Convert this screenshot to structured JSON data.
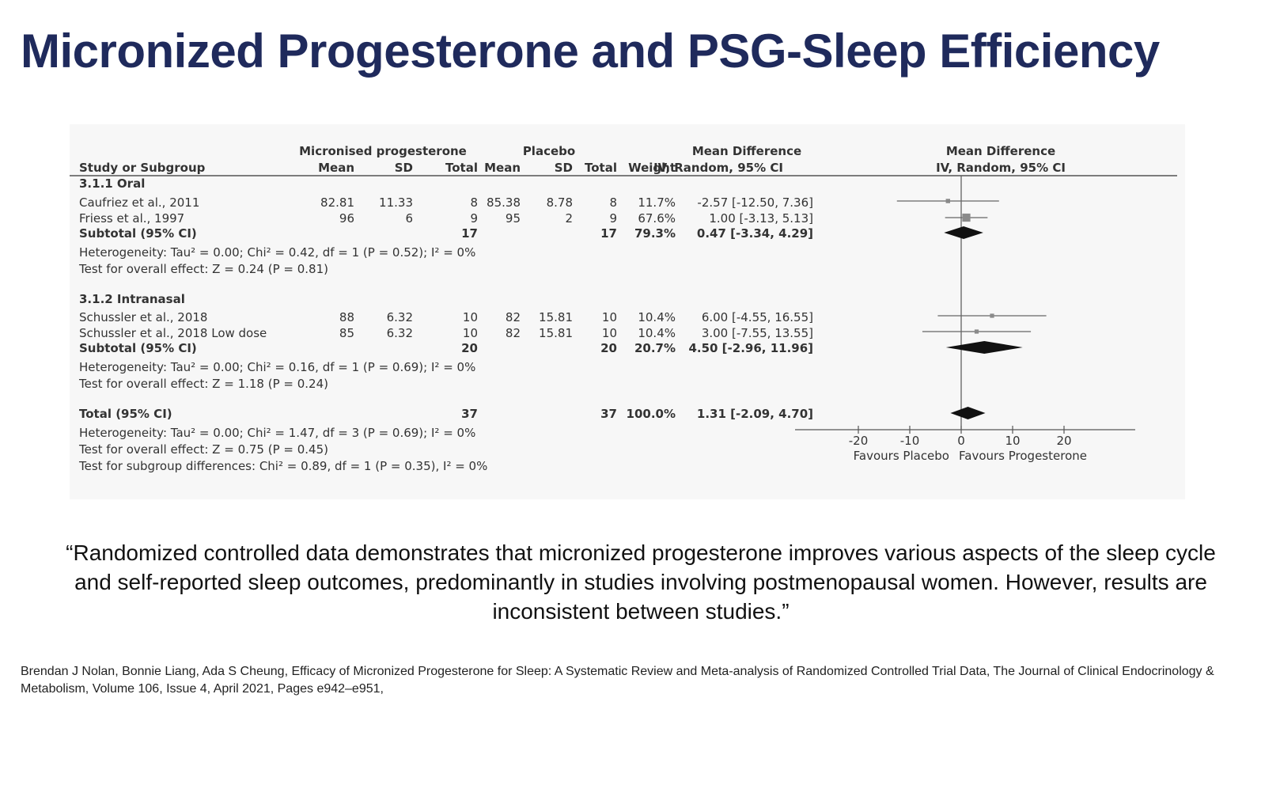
{
  "title": "Micronized Progesterone and PSG-Sleep Efficiency",
  "headers": {
    "group_treatment": "Micronised progesterone",
    "group_placebo": "Placebo",
    "group_md": "Mean Difference",
    "study": "Study or Subgroup",
    "mean": "Mean",
    "sd": "SD",
    "total": "Total",
    "weight": "Weight",
    "ci_method": "IV, Random, 95% CI",
    "plot_title": "Mean Difference",
    "plot_method": "IV, Random, 95% CI"
  },
  "subgroups": [
    {
      "name": "3.1.1 Oral",
      "studies": [
        {
          "study": "Caufriez et al., 2011",
          "t_mean": "82.81",
          "t_sd": "11.33",
          "t_total": "8",
          "p_mean": "85.38",
          "p_sd": "8.78",
          "p_total": "8",
          "weight": "11.7%",
          "ci_text": "-2.57 [-12.50, 7.36]"
        },
        {
          "study": "Friess et al., 1997",
          "t_mean": "96",
          "t_sd": "6",
          "t_total": "9",
          "p_mean": "95",
          "p_sd": "2",
          "p_total": "9",
          "weight": "67.6%",
          "ci_text": "1.00 [-3.13, 5.13]"
        }
      ],
      "subtotal": {
        "label": "Subtotal (95% CI)",
        "t_total": "17",
        "p_total": "17",
        "weight": "79.3%",
        "ci_text": "0.47 [-3.34, 4.29]"
      },
      "heterogeneity": "Heterogeneity: Tau² = 0.00; Chi² = 0.42, df = 1 (P = 0.52); I² = 0%",
      "overall": "Test for overall effect: Z = 0.24 (P = 0.81)"
    },
    {
      "name": "3.1.2 Intranasal",
      "studies": [
        {
          "study": "Schussler et al., 2018",
          "t_mean": "88",
          "t_sd": "6.32",
          "t_total": "10",
          "p_mean": "82",
          "p_sd": "15.81",
          "p_total": "10",
          "weight": "10.4%",
          "ci_text": "6.00 [-4.55, 16.55]"
        },
        {
          "study": "Schussler et al., 2018 Low dose",
          "t_mean": "85",
          "t_sd": "6.32",
          "t_total": "10",
          "p_mean": "82",
          "p_sd": "15.81",
          "p_total": "10",
          "weight": "10.4%",
          "ci_text": "3.00 [-7.55, 13.55]"
        }
      ],
      "subtotal": {
        "label": "Subtotal (95% CI)",
        "t_total": "20",
        "p_total": "20",
        "weight": "20.7%",
        "ci_text": "4.50 [-2.96, 11.96]"
      },
      "heterogeneity": "Heterogeneity: Tau² = 0.00; Chi² = 0.16, df = 1 (P = 0.69); I² = 0%",
      "overall": "Test for overall effect: Z = 1.18 (P = 0.24)"
    }
  ],
  "total": {
    "label": "Total (95% CI)",
    "t_total": "37",
    "p_total": "37",
    "weight": "100.0%",
    "ci_text": "1.31 [-2.09, 4.70]",
    "heterogeneity": "Heterogeneity: Tau² = 0.00; Chi² = 1.47, df = 3 (P = 0.69); I² = 0%",
    "overall": "Test for overall effect: Z = 0.75 (P = 0.45)",
    "subgroup_diff": "Test for subgroup differences: Chi² = 0.89, df = 1 (P = 0.35), I² = 0%"
  },
  "chart_data": {
    "type": "forest",
    "xlim": [
      -20,
      20
    ],
    "ticks": [
      -20,
      -10,
      0,
      10,
      20
    ],
    "tick_labels": [
      "-20",
      "-10",
      "0",
      "10",
      "20"
    ],
    "favours_left": "Favours Placebo",
    "favours_right": "Favours Progesterone",
    "estimates": [
      {
        "label": "Caufriez et al., 2011",
        "kind": "study",
        "md": -2.57,
        "lo": -12.5,
        "hi": 7.36,
        "weight": 11.7
      },
      {
        "label": "Friess et al., 1997",
        "kind": "study",
        "md": 1.0,
        "lo": -3.13,
        "hi": 5.13,
        "weight": 67.6
      },
      {
        "label": "Subtotal (95% CI)",
        "kind": "diamond",
        "md": 0.47,
        "lo": -3.34,
        "hi": 4.29,
        "weight": 79.3
      },
      {
        "label": "Schussler et al., 2018",
        "kind": "study",
        "md": 6.0,
        "lo": -4.55,
        "hi": 16.55,
        "weight": 10.4
      },
      {
        "label": "Schussler et al., 2018 Low dose",
        "kind": "study",
        "md": 3.0,
        "lo": -7.55,
        "hi": 13.55,
        "weight": 10.4
      },
      {
        "label": "Subtotal (95% CI)",
        "kind": "diamond",
        "md": 4.5,
        "lo": -2.96,
        "hi": 11.96,
        "weight": 20.7
      },
      {
        "label": "Total (95% CI)",
        "kind": "diamond",
        "md": 1.31,
        "lo": -2.09,
        "hi": 4.7,
        "weight": 100.0
      }
    ],
    "colors": {
      "marker": "#8a8a8a",
      "diamond": "#111111",
      "axis": "#555555"
    }
  },
  "quote": "“Randomized controlled data demonstrates that micronized progesterone improves various aspects of the sleep cycle and self-reported sleep outcomes, predominantly in studies involving postmenopausal women. However, results are inconsistent between studies.”",
  "citation": "Brendan J Nolan, Bonnie Liang, Ada S Cheung, Efficacy of Micronized Progesterone for Sleep: A Systematic Review and Meta-analysis of Randomized Controlled Trial Data, The Journal of Clinical Endocrinology & Metabolism, Volume 106, Issue 4, April 2021, Pages e942–e951,"
}
